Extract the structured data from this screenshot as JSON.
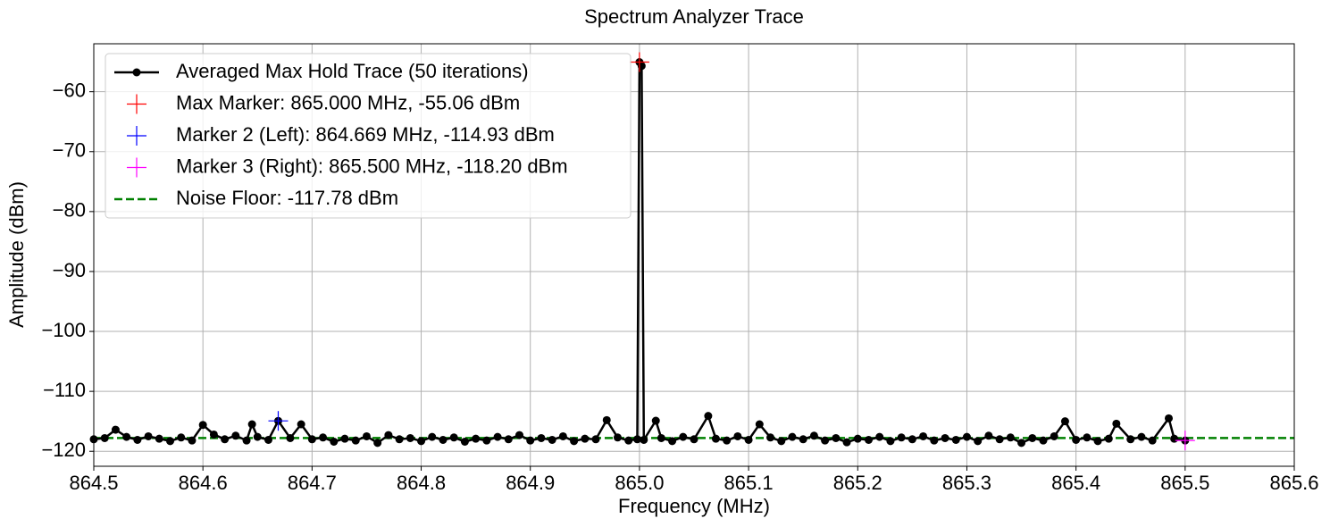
{
  "chart_data": {
    "type": "line",
    "title": "Spectrum Analyzer Trace",
    "xlabel": "Frequency (MHz)",
    "ylabel": "Amplitude (dBm)",
    "xlim": [
      864.5,
      865.6
    ],
    "ylim": [
      -122.5,
      -52
    ],
    "xticks": [
      864.5,
      864.6,
      864.7,
      864.8,
      864.9,
      {
        "value": 865,
        "label": "865.0"
      },
      865.1,
      865.2,
      865.3,
      865.4,
      865.5,
      865.6
    ],
    "yticks": [
      {
        "value": -60,
        "label": "−60"
      },
      {
        "value": -70,
        "label": "−70"
      },
      {
        "value": -80,
        "label": "−80"
      },
      {
        "value": -90,
        "label": "−90"
      },
      {
        "value": -100,
        "label": "−100"
      },
      {
        "value": -110,
        "label": "−110"
      },
      {
        "value": -120,
        "label": "−120"
      }
    ],
    "grid": true,
    "legend": "upper left",
    "series": [
      {
        "name": "Averaged Max Hold Trace (50 iterations)",
        "color": "#000000",
        "kind": "line-marker",
        "x": [
          864.5,
          864.51,
          864.52,
          864.53,
          864.54,
          864.55,
          864.56,
          864.57,
          864.58,
          864.59,
          864.6,
          864.61,
          864.62,
          864.63,
          864.64,
          864.645,
          864.65,
          864.66,
          864.669,
          864.68,
          864.69,
          864.7,
          864.71,
          864.72,
          864.73,
          864.74,
          864.75,
          864.76,
          864.77,
          864.78,
          864.79,
          864.8,
          864.81,
          864.82,
          864.83,
          864.84,
          864.85,
          864.86,
          864.87,
          864.88,
          864.89,
          864.9,
          864.91,
          864.92,
          864.93,
          864.94,
          864.95,
          864.96,
          864.97,
          864.98,
          864.99,
          864.998,
          865.0,
          865.002,
          865.004,
          865.015,
          865.02,
          865.03,
          865.04,
          865.05,
          865.063,
          865.07,
          865.08,
          865.09,
          865.1,
          865.11,
          865.12,
          865.13,
          865.14,
          865.15,
          865.16,
          865.17,
          865.18,
          865.19,
          865.2,
          865.21,
          865.22,
          865.23,
          865.24,
          865.25,
          865.26,
          865.27,
          865.28,
          865.29,
          865.3,
          865.31,
          865.32,
          865.33,
          865.34,
          865.35,
          865.36,
          865.37,
          865.38,
          865.39,
          865.4,
          865.41,
          865.42,
          865.43,
          865.437,
          865.45,
          865.46,
          865.47,
          865.485,
          865.49,
          865.5
        ],
        "values": [
          -118.0,
          -117.8,
          -116.4,
          -117.6,
          -118.1,
          -117.5,
          -117.9,
          -118.3,
          -117.7,
          -118.2,
          -115.6,
          -117.2,
          -118.0,
          -117.4,
          -118.2,
          -115.5,
          -117.6,
          -118.1,
          -114.93,
          -117.8,
          -115.5,
          -118.0,
          -117.7,
          -118.4,
          -117.9,
          -118.2,
          -117.5,
          -118.6,
          -117.3,
          -118.0,
          -117.8,
          -118.3,
          -117.6,
          -118.1,
          -117.7,
          -118.4,
          -117.9,
          -118.2,
          -117.6,
          -118.0,
          -117.3,
          -118.2,
          -117.8,
          -118.1,
          -117.5,
          -118.3,
          -117.9,
          -118.0,
          -114.8,
          -117.7,
          -118.2,
          -118.0,
          -55.06,
          -55.7,
          -118.1,
          -114.9,
          -117.8,
          -118.3,
          -117.6,
          -118.0,
          -114.1,
          -117.9,
          -118.2,
          -117.5,
          -118.1,
          -115.5,
          -117.7,
          -118.3,
          -117.6,
          -118.0,
          -117.4,
          -118.2,
          -117.8,
          -118.5,
          -117.9,
          -118.1,
          -117.6,
          -118.3,
          -117.7,
          -118.0,
          -117.5,
          -118.2,
          -117.8,
          -118.1,
          -117.6,
          -118.3,
          -117.4,
          -118.0,
          -117.7,
          -118.6,
          -117.8,
          -118.2,
          -117.5,
          -115.0,
          -118.1,
          -117.7,
          -118.3,
          -117.9,
          -115.4,
          -118.0,
          -117.6,
          -118.2,
          -114.5,
          -117.9,
          -118.2
        ]
      },
      {
        "name": "Max Marker: 865.000 MHz, -55.06 dBm",
        "color": "#ff0000",
        "kind": "marker",
        "x": [
          865.0
        ],
        "values": [
          -55.06
        ]
      },
      {
        "name": "Marker 2 (Left): 864.669 MHz, -114.93 dBm",
        "color": "#0000ff",
        "kind": "marker",
        "x": [
          864.669
        ],
        "values": [
          -114.93
        ]
      },
      {
        "name": "Marker 3 (Right): 865.500 MHz, -118.20 dBm",
        "color": "#ff00ff",
        "kind": "marker",
        "x": [
          865.5
        ],
        "values": [
          -118.2
        ]
      },
      {
        "name": "Noise Floor: -117.78 dBm",
        "color": "#008000",
        "kind": "hline",
        "values": [
          -117.78
        ]
      }
    ]
  }
}
